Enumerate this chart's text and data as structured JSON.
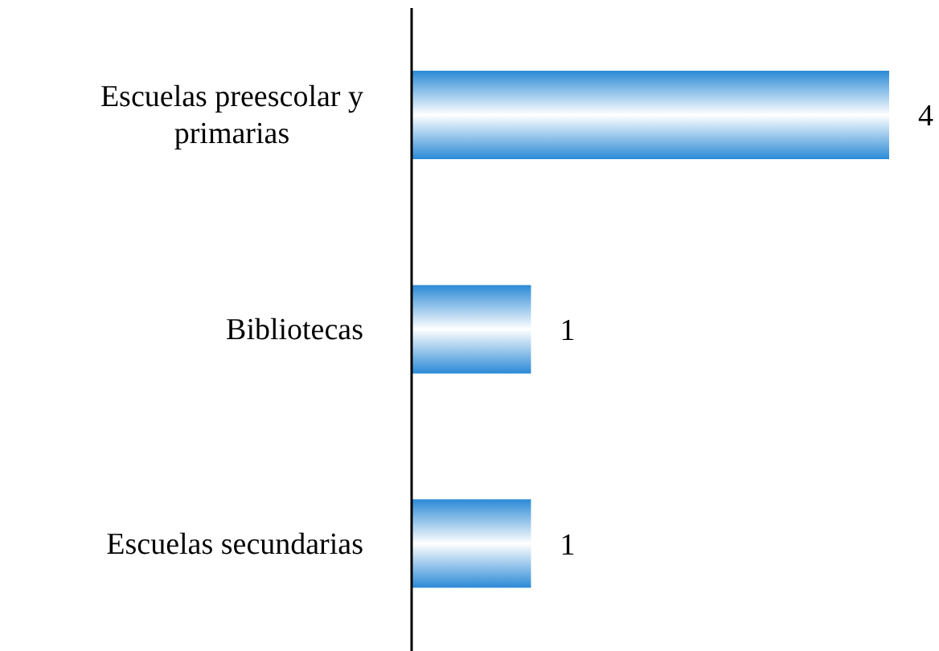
{
  "chart_data": {
    "type": "bar",
    "orientation": "horizontal",
    "categories": [
      "Escuelas preescolar y primarias",
      "Bibliotecas",
      "Escuelas secundarias"
    ],
    "values": [
      4,
      1,
      1
    ],
    "color": "#2b8ad6",
    "data_labels": true,
    "grid": false,
    "legend": false
  }
}
